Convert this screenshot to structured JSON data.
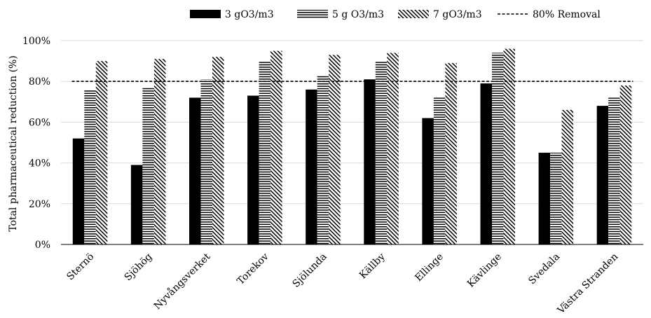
{
  "chart_data": {
    "type": "bar",
    "title": "",
    "xlabel": "",
    "ylabel": "Total pharmaceutical reduction (%)",
    "ylim": [
      0,
      100
    ],
    "yticks": [
      0,
      20,
      40,
      60,
      80,
      100
    ],
    "ytick_labels": [
      "0%",
      "20%",
      "40%",
      "60%",
      "80%",
      "100%"
    ],
    "grid": "horizontal",
    "legend_position": "top",
    "categories": [
      "Sternö",
      "Sjöhög",
      "Nyvångsverket",
      "Torekov",
      "Sjölunda",
      "Källby",
      "Ellinge",
      "Kävlinge",
      "Svedala",
      "Västra Stranden"
    ],
    "series": [
      {
        "name": "3 gO3/m3",
        "pattern": "solid",
        "color": "#000000",
        "values": [
          52,
          39,
          72,
          73,
          76,
          81,
          62,
          79,
          45,
          68
        ]
      },
      {
        "name": "5 g O3/m3",
        "pattern": "horizontal-lines",
        "color": "#000000",
        "values": [
          76,
          77,
          81,
          90,
          83,
          90,
          72,
          94,
          45,
          72
        ]
      },
      {
        "name": "7 gO3/m3",
        "pattern": "diagonal-lines",
        "color": "#000000",
        "values": [
          90,
          91,
          92,
          95,
          93,
          94,
          89,
          96,
          66,
          78
        ]
      }
    ],
    "reference_line": {
      "name": "80% Removal",
      "value": 80,
      "style": "dashed"
    }
  }
}
